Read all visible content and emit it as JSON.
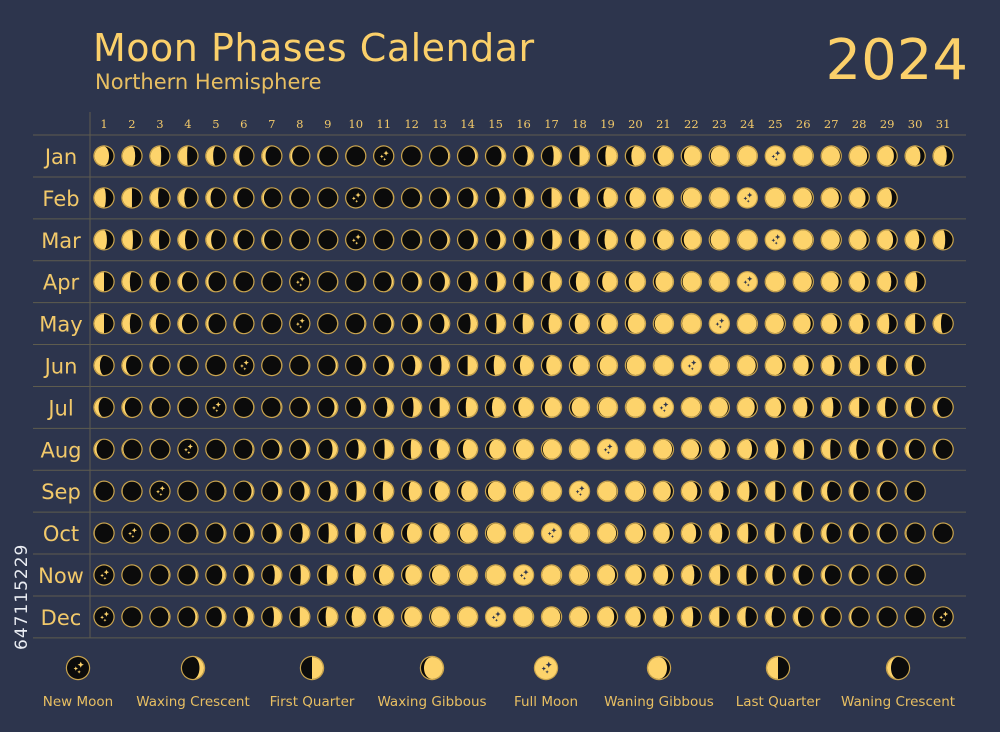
{
  "header": {
    "title": "Moon Phases Calendar",
    "subtitle": "Northern Hemisphere",
    "year": "2024"
  },
  "side_id": "647115229",
  "colors": {
    "background": "#2d354d",
    "moon_lit": "#fdd36b",
    "moon_dark": "#0b0b0b",
    "outline": "#c9a44e",
    "text": "#f2c96a",
    "grid": "#5e5c4e"
  },
  "months": [
    {
      "label": "Jan",
      "days": 31
    },
    {
      "label": "Feb",
      "days": 29
    },
    {
      "label": "Mar",
      "days": 31
    },
    {
      "label": "Apr",
      "days": 30
    },
    {
      "label": "May",
      "days": 31
    },
    {
      "label": "Jun",
      "days": 30
    },
    {
      "label": "Jul",
      "days": 31
    },
    {
      "label": "Aug",
      "days": 31
    },
    {
      "label": "Sep",
      "days": 30
    },
    {
      "label": "Oct",
      "days": 31
    },
    {
      "label": "Now",
      "days": 30
    },
    {
      "label": "Dec",
      "days": 31
    }
  ],
  "day_numbers": [
    "1",
    "2",
    "3",
    "4",
    "5",
    "6",
    "7",
    "8",
    "9",
    "10",
    "11",
    "12",
    "13",
    "14",
    "15",
    "16",
    "17",
    "18",
    "19",
    "20",
    "21",
    "22",
    "23",
    "24",
    "25",
    "26",
    "27",
    "28",
    "29",
    "30",
    "31"
  ],
  "new_moons": [
    "2024-01-11",
    "2024-02-10",
    "2024-03-10",
    "2024-04-08",
    "2024-05-08",
    "2024-06-06",
    "2024-07-05",
    "2024-08-04",
    "2024-09-03",
    "2024-10-02",
    "2024-11-01",
    "2024-12-01",
    "2024-12-31"
  ],
  "full_moons": [
    "2024-01-25",
    "2024-02-24",
    "2024-03-25",
    "2024-04-24",
    "2024-05-23",
    "2024-06-22",
    "2024-07-21",
    "2024-08-19",
    "2024-09-18",
    "2024-10-17",
    "2024-11-16",
    "2024-12-15"
  ],
  "legend": [
    {
      "label": "New Moon",
      "phase": 0,
      "stars": true
    },
    {
      "label": "Waxing Crescent",
      "phase": 0.15
    },
    {
      "label": "First Quarter",
      "phase": 0.25
    },
    {
      "label": "Waxing Gibbous",
      "phase": 0.38
    },
    {
      "label": "Full Moon",
      "phase": 0.5,
      "stars": true
    },
    {
      "label": "Waning Gibbous",
      "phase": 0.62
    },
    {
      "label": "Last Quarter",
      "phase": 0.75
    },
    {
      "label": "Waning Crescent",
      "phase": 0.86
    }
  ]
}
